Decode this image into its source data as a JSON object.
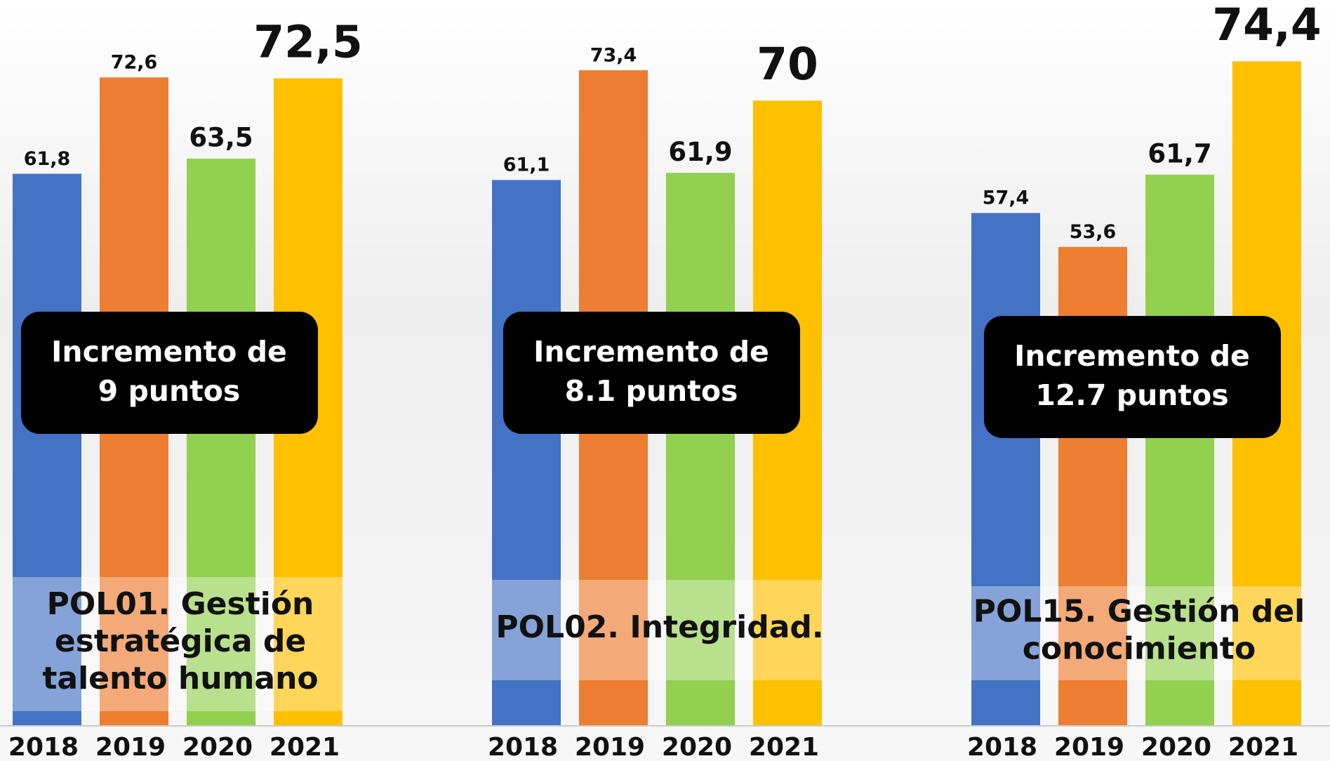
{
  "chart_data": [
    {
      "type": "bar",
      "categories": [
        "2018",
        "2019",
        "2020",
        "2021"
      ],
      "values": [
        61.8,
        72.6,
        63.5,
        72.5
      ],
      "value_labels": [
        "61,8",
        "72,6",
        "63,5",
        "72,5"
      ],
      "colors": [
        "#4472c4",
        "#ed7d31",
        "#92d050",
        "#ffc000"
      ],
      "annotation": [
        "Incremento de",
        "9 puntos"
      ],
      "title": [
        "POL01.  Gestión",
        "estratégica de",
        "talento humano"
      ]
    },
    {
      "type": "bar",
      "categories": [
        "2018",
        "2019",
        "2020",
        "2021"
      ],
      "values": [
        61.1,
        73.4,
        61.9,
        70
      ],
      "value_labels": [
        "61,1",
        "73,4",
        "61,9",
        "70"
      ],
      "colors": [
        "#4472c4",
        "#ed7d31",
        "#92d050",
        "#ffc000"
      ],
      "annotation": [
        "Incremento de",
        "8.1 puntos"
      ],
      "title": [
        "POL02. Integridad."
      ]
    },
    {
      "type": "bar",
      "categories": [
        "2018",
        "2019",
        "2020",
        "2021"
      ],
      "values": [
        57.4,
        53.6,
        61.7,
        74.4
      ],
      "value_labels": [
        "57,4",
        "53,6",
        "61,7",
        "74,4"
      ],
      "colors": [
        "#4472c4",
        "#ed7d31",
        "#92d050",
        "#ffc000"
      ],
      "annotation": [
        "Incremento de",
        "12.7 puntos"
      ],
      "title": [
        "POL15. Gestión del",
        "conocimiento"
      ]
    }
  ]
}
